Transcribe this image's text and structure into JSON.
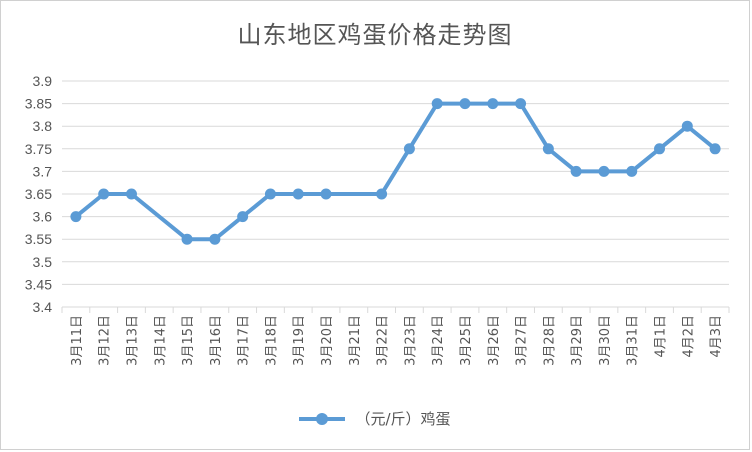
{
  "chart_data": {
    "type": "line",
    "title": "山东地区鸡蛋价格走势图",
    "xlabel": "",
    "ylabel": "",
    "ylim": [
      3.4,
      3.9
    ],
    "yticks": [
      "3.4",
      "3.45",
      "3.5",
      "3.55",
      "3.6",
      "3.65",
      "3.7",
      "3.75",
      "3.8",
      "3.85",
      "3.9"
    ],
    "grid": true,
    "legend_position": "bottom",
    "categories": [
      "3月11日",
      "3月12日",
      "3月13日",
      "3月14日",
      "3月15日",
      "3月16日",
      "3月17日",
      "3月18日",
      "3月19日",
      "3月20日",
      "3月21日",
      "3月22日",
      "3月23日",
      "3月24日",
      "3月25日",
      "3月26日",
      "3月27日",
      "3月28日",
      "3月29日",
      "3月30日",
      "3月31日",
      "4月1日",
      "4月2日",
      "4月3日"
    ],
    "series": [
      {
        "name": "（元/斤）鸡蛋",
        "color": "#5b9bd5",
        "values": [
          3.6,
          3.65,
          3.65,
          null,
          3.55,
          3.55,
          3.6,
          3.65,
          3.65,
          3.65,
          null,
          3.65,
          3.75,
          3.85,
          3.85,
          3.85,
          3.85,
          3.75,
          3.7,
          3.7,
          3.7,
          3.75,
          3.8,
          3.75
        ]
      }
    ]
  }
}
